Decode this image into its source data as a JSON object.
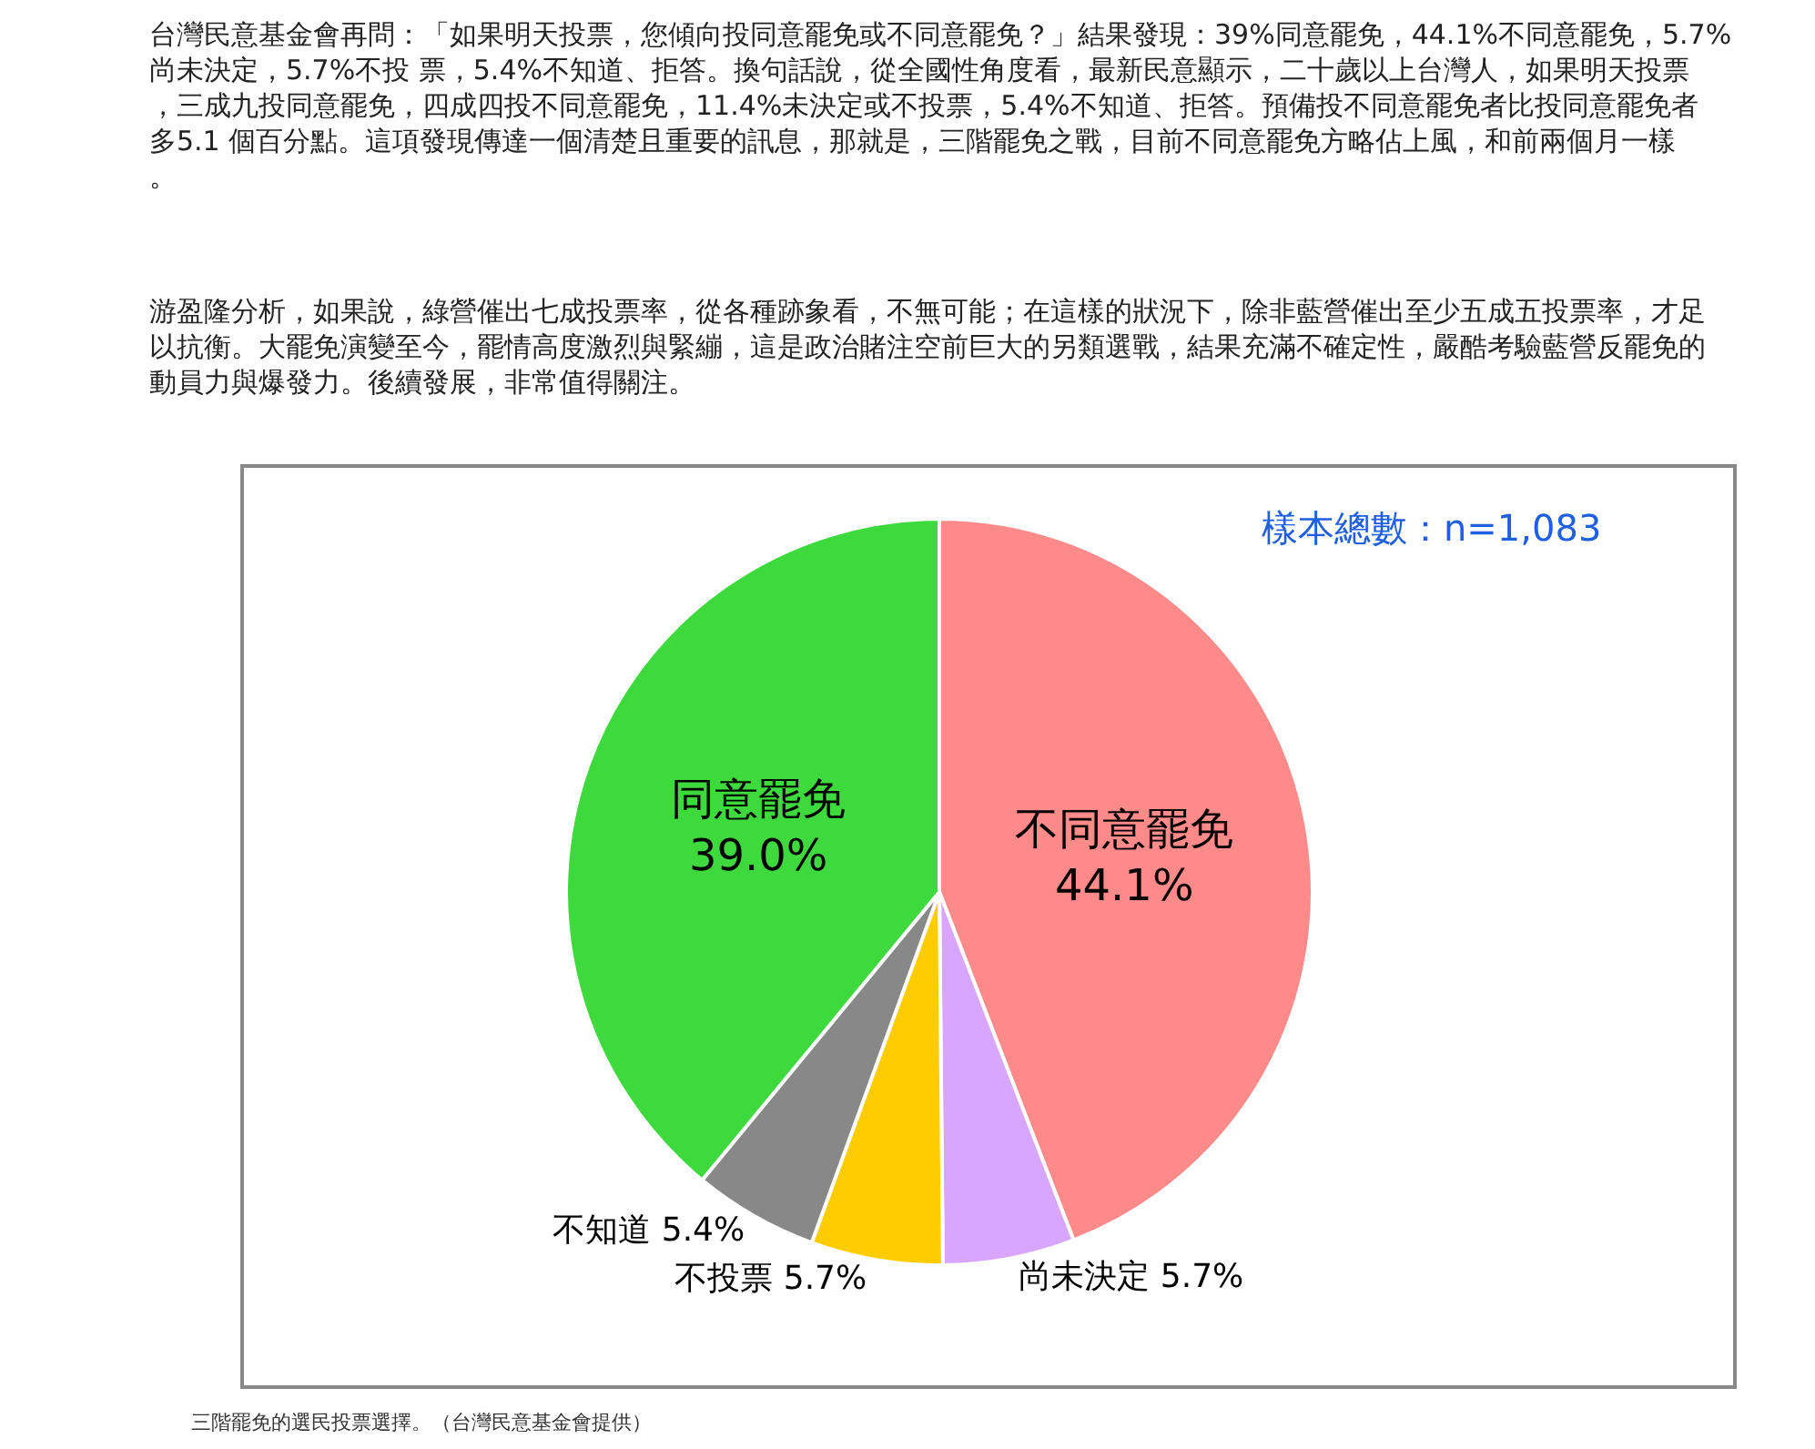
{
  "chart_data": {
    "type": "pie",
    "categories": [
      "不同意罷免",
      "尚未決定",
      "不投票",
      "不知道",
      "同意罷免"
    ],
    "values": [
      44.1,
      5.7,
      5.7,
      5.4,
      39.0
    ],
    "value_labels": [
      "44.1%",
      "5.7%",
      "5.7%",
      "5.4%",
      "39.0%"
    ],
    "colors": [
      "#ff8a8a",
      "#d9a6ff",
      "#ffcc00",
      "#888888",
      "#3dd93d"
    ],
    "legend": false,
    "annotations": [
      "台灣民意基金會再問：「如果明天投票，您傾向投同意罷免或不同意罷免？」結果發現：39%同意罷免，44.1%不同意罷免，5.7%尚未決定，5.7%不投 票，5.4%不知道、拒答。換句話說，從全國性角度看，最新民意顯示，二十歲以上台灣人，如果明天投票，三成九投同意罷免，四成四投不同意罷免，11.4%未決定或不投票，5.4%不知道、拒答。預備投不同意罷免者比投同意罷免者多5.1 個百分點。這項發現傳達一個清楚且重要的訊息，那就是，三階罷免之戰，目前不同意罷免方略佔上風，和前兩個月一樣。",
      "游盈隆分析，如果說，綠營催出七成投票率，從各種跡象看，不無可能；在這樣的狀況下，除非藍營催出至少五成五投票率，才足以抗衡。大罷免演變至今，罷情高度激烈與緊繃，這是政治賭注空前巨大的另類選戰，結果充滿不確定性，嚴酷考驗藍營反罷免的動員力與爆發力。後續發展，非常值得關注。",
      "樣本總數：n=1,083",
      "三階罷免的選民投票選擇。（台灣民意基金會提供）"
    ]
  }
}
